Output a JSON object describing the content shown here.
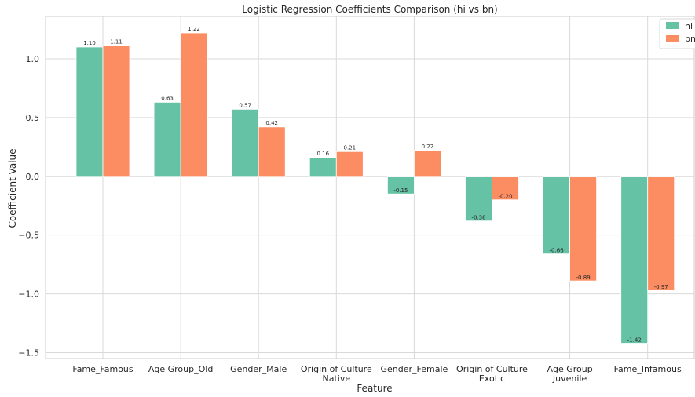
{
  "chart_data": {
    "type": "bar",
    "title": "Logistic Regression Coefficients Comparison (hi vs bn)",
    "xlabel": "Feature",
    "ylabel": "Coefficient Value",
    "categories": [
      [
        "Fame_Famous"
      ],
      [
        "Age Group_Old"
      ],
      [
        "Gender_Male"
      ],
      [
        "Origin of Culture",
        "Native"
      ],
      [
        "Gender_Female"
      ],
      [
        "Origin of Culture",
        "Exotic"
      ],
      [
        "Age Group",
        "Juvenile"
      ],
      [
        "Fame_Infamous"
      ]
    ],
    "series": [
      {
        "name": "hi",
        "color": "#66c2a5",
        "values": [
          1.1,
          0.63,
          0.57,
          0.16,
          -0.15,
          -0.38,
          -0.66,
          -1.42
        ]
      },
      {
        "name": "bn",
        "color": "#fc8d62",
        "values": [
          1.11,
          1.22,
          0.42,
          0.21,
          0.22,
          -0.2,
          -0.89,
          -0.97
        ]
      }
    ],
    "ylim": [
      -1.55,
      1.36
    ],
    "yticks": [
      -1.5,
      -1.0,
      -0.5,
      0.0,
      0.5,
      1.0
    ],
    "ytick_labels": [
      "−1.5",
      "−1.0",
      "−0.5",
      "0.0",
      "0.5",
      "1.0"
    ],
    "grid": true,
    "legend_position": "top-right"
  }
}
